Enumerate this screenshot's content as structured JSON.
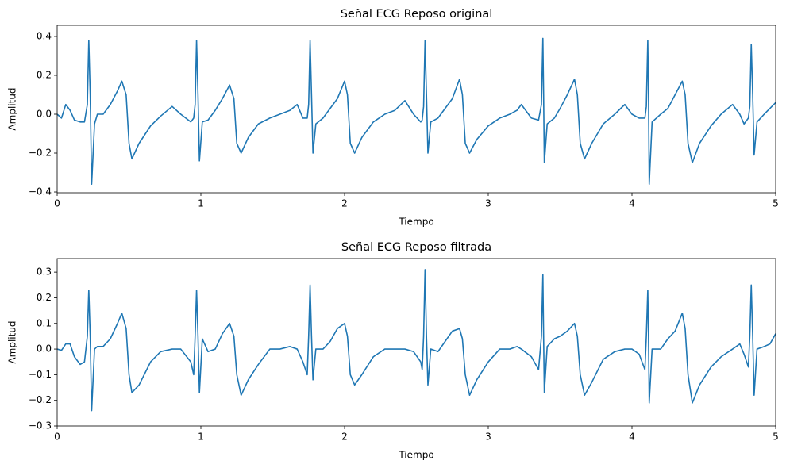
{
  "chart_data": [
    {
      "type": "line",
      "title": "Señal ECG Reposo original",
      "xlabel": "Tiempo",
      "ylabel": "Amplitud",
      "xlim": [
        0,
        5
      ],
      "ylim": [
        -0.404,
        0.457
      ],
      "xticks": [
        0,
        1,
        2,
        3,
        4,
        5
      ],
      "yticks": [
        {
          "value": -0.4,
          "label": "−0.4"
        },
        {
          "value": -0.2,
          "label": "−0.2"
        },
        {
          "value": 0,
          "label": "0.0"
        },
        0.2,
        0.4
      ],
      "series": [
        {
          "color": "#1f77b4",
          "x": [
            0,
            0.03,
            0.06,
            0.09,
            0.12,
            0.16,
            0.19,
            0.21,
            0.22,
            0.23,
            0.24,
            0.26,
            0.28,
            0.32,
            0.37,
            0.42,
            0.45,
            0.48,
            0.5,
            0.52,
            0.57,
            0.65,
            0.72,
            0.8,
            0.86,
            0.93,
            0.95,
            0.96,
            0.97,
            0.98,
            0.99,
            1.01,
            1.05,
            1.1,
            1.15,
            1.2,
            1.23,
            1.25,
            1.28,
            1.33,
            1.4,
            1.48,
            1.55,
            1.62,
            1.67,
            1.71,
            1.74,
            1.75,
            1.76,
            1.77,
            1.78,
            1.8,
            1.85,
            1.9,
            1.95,
            2.0,
            2.02,
            2.04,
            2.07,
            2.12,
            2.2,
            2.28,
            2.35,
            2.42,
            2.48,
            2.53,
            2.54,
            2.55,
            2.56,
            2.57,
            2.58,
            2.6,
            2.65,
            2.7,
            2.75,
            2.8,
            2.82,
            2.84,
            2.87,
            2.92,
            3.0,
            3.08,
            3.15,
            3.2,
            3.23,
            3.3,
            3.35,
            3.37,
            3.38,
            3.385,
            3.39,
            3.41,
            3.46,
            3.5,
            3.55,
            3.6,
            3.62,
            3.64,
            3.67,
            3.72,
            3.8,
            3.88,
            3.95,
            4.0,
            4.05,
            4.09,
            4.1,
            4.11,
            4.115,
            4.12,
            4.14,
            4.2,
            4.25,
            4.3,
            4.35,
            4.37,
            4.39,
            4.42,
            4.47,
            4.55,
            4.62,
            4.7,
            4.75,
            4.78,
            4.81,
            4.82,
            4.83,
            4.84,
            4.85,
            4.87,
            4.92,
            4.96,
            5.0
          ],
          "values": [
            0.0,
            -0.02,
            0.05,
            0.02,
            -0.03,
            -0.04,
            -0.04,
            0.05,
            0.38,
            0.1,
            -0.36,
            -0.05,
            0.0,
            0.0,
            0.05,
            0.12,
            0.17,
            0.1,
            -0.15,
            -0.23,
            -0.15,
            -0.06,
            -0.01,
            0.04,
            0.0,
            -0.04,
            -0.02,
            0.05,
            0.38,
            0.1,
            -0.24,
            -0.04,
            -0.03,
            0.02,
            0.08,
            0.15,
            0.08,
            -0.15,
            -0.2,
            -0.12,
            -0.05,
            -0.02,
            0.0,
            0.02,
            0.05,
            -0.02,
            -0.02,
            0.05,
            0.38,
            0.1,
            -0.2,
            -0.05,
            -0.02,
            0.03,
            0.08,
            0.17,
            0.1,
            -0.15,
            -0.2,
            -0.12,
            -0.04,
            0.0,
            0.02,
            0.07,
            0.0,
            -0.04,
            -0.03,
            0.04,
            0.38,
            0.1,
            -0.2,
            -0.04,
            -0.02,
            0.03,
            0.08,
            0.18,
            0.1,
            -0.15,
            -0.2,
            -0.13,
            -0.06,
            -0.02,
            0.0,
            0.02,
            0.05,
            -0.02,
            -0.03,
            0.05,
            0.39,
            0.1,
            -0.25,
            -0.05,
            -0.02,
            0.03,
            0.1,
            0.18,
            0.1,
            -0.15,
            -0.23,
            -0.15,
            -0.05,
            0.0,
            0.05,
            0.0,
            -0.02,
            -0.02,
            0.04,
            0.38,
            0.1,
            -0.36,
            -0.04,
            0.0,
            0.03,
            0.1,
            0.17,
            0.1,
            -0.15,
            -0.25,
            -0.15,
            -0.06,
            0.0,
            0.05,
            0.0,
            -0.05,
            -0.02,
            0.04,
            0.36,
            0.1,
            -0.21,
            -0.04,
            0.0,
            0.03,
            0.06
          ]
        }
      ]
    },
    {
      "type": "line",
      "title": "Señal ECG Reposo filtrada",
      "xlabel": "Tiempo",
      "ylabel": "Amplitud",
      "xlim": [
        0,
        5
      ],
      "ylim": [
        -0.3,
        0.353
      ],
      "xticks": [
        0,
        1,
        2,
        3,
        4,
        5
      ],
      "yticks": [
        {
          "value": -0.3,
          "label": "−0.3"
        },
        {
          "value": -0.2,
          "label": "−0.2"
        },
        {
          "value": -0.1,
          "label": "−0.1"
        },
        {
          "value": 0,
          "label": "0.0"
        },
        0.1,
        0.2,
        0.3
      ],
      "series": [
        {
          "color": "#1f77b4",
          "x": [
            0,
            0.03,
            0.06,
            0.09,
            0.12,
            0.16,
            0.19,
            0.21,
            0.22,
            0.23,
            0.24,
            0.26,
            0.28,
            0.32,
            0.37,
            0.42,
            0.45,
            0.48,
            0.5,
            0.52,
            0.57,
            0.65,
            0.72,
            0.8,
            0.86,
            0.93,
            0.95,
            0.96,
            0.97,
            0.98,
            0.99,
            1.01,
            1.05,
            1.1,
            1.15,
            1.2,
            1.23,
            1.25,
            1.28,
            1.33,
            1.4,
            1.48,
            1.55,
            1.62,
            1.67,
            1.71,
            1.74,
            1.75,
            1.76,
            1.77,
            1.78,
            1.8,
            1.85,
            1.9,
            1.95,
            2.0,
            2.02,
            2.04,
            2.07,
            2.12,
            2.2,
            2.28,
            2.35,
            2.42,
            2.48,
            2.53,
            2.54,
            2.55,
            2.56,
            2.57,
            2.58,
            2.6,
            2.65,
            2.7,
            2.75,
            2.8,
            2.82,
            2.84,
            2.87,
            2.92,
            3.0,
            3.08,
            3.15,
            3.2,
            3.23,
            3.3,
            3.35,
            3.37,
            3.38,
            3.385,
            3.39,
            3.41,
            3.46,
            3.5,
            3.55,
            3.6,
            3.62,
            3.64,
            3.67,
            3.72,
            3.8,
            3.88,
            3.95,
            4.0,
            4.05,
            4.09,
            4.1,
            4.11,
            4.115,
            4.12,
            4.14,
            4.2,
            4.25,
            4.3,
            4.35,
            4.37,
            4.39,
            4.42,
            4.47,
            4.55,
            4.62,
            4.7,
            4.75,
            4.78,
            4.81,
            4.82,
            4.83,
            4.84,
            4.85,
            4.87,
            4.92,
            4.96,
            5.0
          ],
          "values": [
            0.0,
            -0.005,
            0.02,
            0.02,
            -0.03,
            -0.06,
            -0.05,
            0.05,
            0.23,
            0.05,
            -0.24,
            0.0,
            0.01,
            0.01,
            0.04,
            0.1,
            0.14,
            0.08,
            -0.1,
            -0.17,
            -0.14,
            -0.05,
            -0.01,
            0.0,
            0.0,
            -0.05,
            -0.1,
            0.05,
            0.23,
            0.05,
            -0.17,
            0.04,
            -0.01,
            0.0,
            0.06,
            0.1,
            0.05,
            -0.1,
            -0.18,
            -0.12,
            -0.06,
            0.0,
            0.0,
            0.01,
            0.0,
            -0.05,
            -0.1,
            0.05,
            0.25,
            0.05,
            -0.12,
            0.0,
            0.0,
            0.03,
            0.08,
            0.1,
            0.05,
            -0.1,
            -0.14,
            -0.1,
            -0.03,
            0.0,
            0.0,
            0.0,
            -0.01,
            -0.05,
            -0.08,
            0.05,
            0.31,
            0.05,
            -0.14,
            0.0,
            -0.01,
            0.03,
            0.07,
            0.08,
            0.04,
            -0.1,
            -0.18,
            -0.12,
            -0.05,
            0.0,
            0.0,
            0.01,
            0.0,
            -0.03,
            -0.08,
            0.05,
            0.29,
            0.05,
            -0.17,
            0.01,
            0.04,
            0.05,
            0.07,
            0.1,
            0.05,
            -0.1,
            -0.18,
            -0.13,
            -0.04,
            -0.01,
            0.0,
            0.0,
            -0.02,
            -0.08,
            0.05,
            0.23,
            0.05,
            -0.21,
            0.0,
            0.0,
            0.04,
            0.07,
            0.14,
            0.08,
            -0.1,
            -0.21,
            -0.14,
            -0.07,
            -0.03,
            0.0,
            0.02,
            -0.02,
            -0.07,
            0.05,
            0.25,
            0.05,
            -0.18,
            0.0,
            0.01,
            0.02,
            0.06
          ]
        }
      ]
    }
  ]
}
